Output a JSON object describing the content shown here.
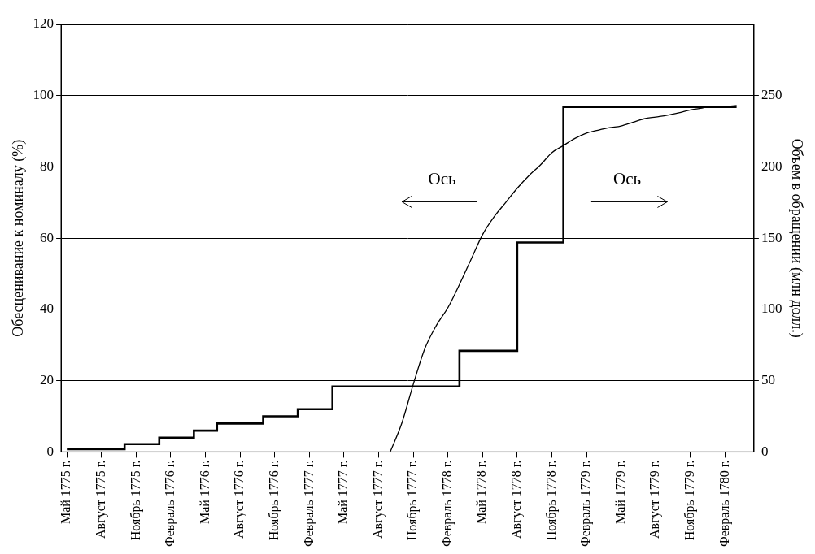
{
  "chart_data": {
    "type": "line",
    "y_label": "Обесценивание к номиналу (%)",
    "y2_label": "Объем в обращении (млн долл.)",
    "categories": [
      "Май 1775 г.",
      null,
      null,
      "Август 1775 г.",
      null,
      null,
      "Ноябрь 1775 г.",
      null,
      null,
      "Февраль 1776 г.",
      null,
      null,
      "Май 1776 г.",
      null,
      null,
      "Август 1776 г.",
      null,
      null,
      "Ноябрь 1776 г.",
      null,
      null,
      "Февраль 1777 г.",
      null,
      null,
      "Май 1777 г.",
      null,
      null,
      "Август 1777 г.",
      null,
      null,
      "Ноябрь 1777 г.",
      null,
      null,
      "Февраль 1778 г.",
      null,
      null,
      "Май 1778 г.",
      null,
      null,
      "Август 1778 г.",
      null,
      null,
      "Ноябрь 1778 г.",
      null,
      null,
      "Февраль 1779 г.",
      null,
      null,
      "Май 1779 г.",
      null,
      null,
      "Август 1779 г.",
      null,
      null,
      "Ноябрь 1779 г.",
      null,
      null,
      "Февраль 1780 г.",
      null,
      null
    ],
    "series": [
      {
        "type": "line",
        "color": "#000000",
        "line_style": "solid",
        "axis": "y",
        "values": [
          null,
          null,
          null,
          null,
          null,
          null,
          null,
          null,
          null,
          null,
          null,
          null,
          null,
          null,
          null,
          null,
          null,
          null,
          null,
          null,
          null,
          null,
          null,
          null,
          null,
          null,
          null,
          null,
          0,
          8,
          19,
          29,
          35.5,
          40.5,
          47,
          54,
          61,
          66,
          70,
          74,
          77.5,
          80.5,
          84,
          86,
          88,
          89.5,
          90.3,
          91,
          91.5,
          92.5,
          93.5,
          94,
          94.5,
          95.2,
          96,
          96.5,
          97,
          97,
          97.2,
          null
        ]
      },
      {
        "type": "step",
        "color": "#000000",
        "line_style": "solid",
        "axis": "y2",
        "values": [
          2,
          2,
          2,
          2,
          2,
          5.5,
          5.5,
          5.5,
          10,
          10,
          10,
          15,
          15,
          20,
          20,
          20,
          20,
          25,
          25,
          25,
          30,
          30,
          30,
          46,
          46,
          46,
          46,
          46,
          46,
          46,
          46,
          46,
          46,
          46,
          71,
          71,
          71,
          71,
          71,
          147,
          147,
          147,
          147,
          242,
          242,
          242,
          242,
          242,
          242,
          242,
          242,
          242,
          242,
          242,
          242,
          242,
          242,
          242,
          242,
          null
        ]
      }
    ],
    "ylim": [
      0,
      120
    ],
    "yticks": [
      0,
      20,
      40,
      60,
      80,
      100,
      120
    ],
    "y2lim": [
      0,
      300
    ],
    "y2ticks": [
      0,
      50,
      100,
      150,
      200,
      250
    ],
    "grid": true,
    "annotations": [
      {
        "text": "Ось",
        "axis": "y"
      },
      {
        "text": "Ось",
        "axis": "y2"
      }
    ]
  }
}
